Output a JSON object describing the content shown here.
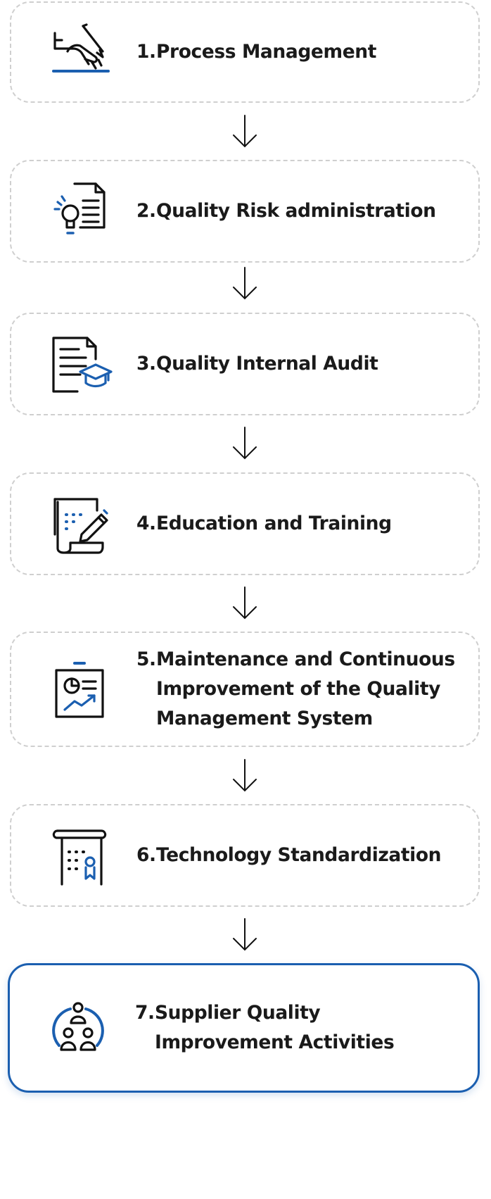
{
  "accent_color": "#1b5fb0",
  "steps": [
    {
      "number": "1.",
      "lines": [
        "Process Management"
      ],
      "icon": "signing-hand-icon"
    },
    {
      "number": "2.",
      "lines": [
        "Quality Risk administration"
      ],
      "icon": "idea-document-icon"
    },
    {
      "number": "3.",
      "lines": [
        "Quality Internal Audit"
      ],
      "icon": "audit-document-graduation-icon"
    },
    {
      "number": "4.",
      "lines": [
        "Education and Training"
      ],
      "icon": "training-document-pencil-icon"
    },
    {
      "number": "5.",
      "lines": [
        "Maintenance and Continuous",
        "Improvement of the Quality",
        "Management System"
      ],
      "icon": "chart-board-icon"
    },
    {
      "number": "6.",
      "lines": [
        "Technology Standardization"
      ],
      "icon": "certificate-scroll-icon"
    },
    {
      "number": "7.",
      "lines": [
        "Supplier Quality",
        "Improvement Activities"
      ],
      "icon": "supplier-team-icon"
    }
  ]
}
